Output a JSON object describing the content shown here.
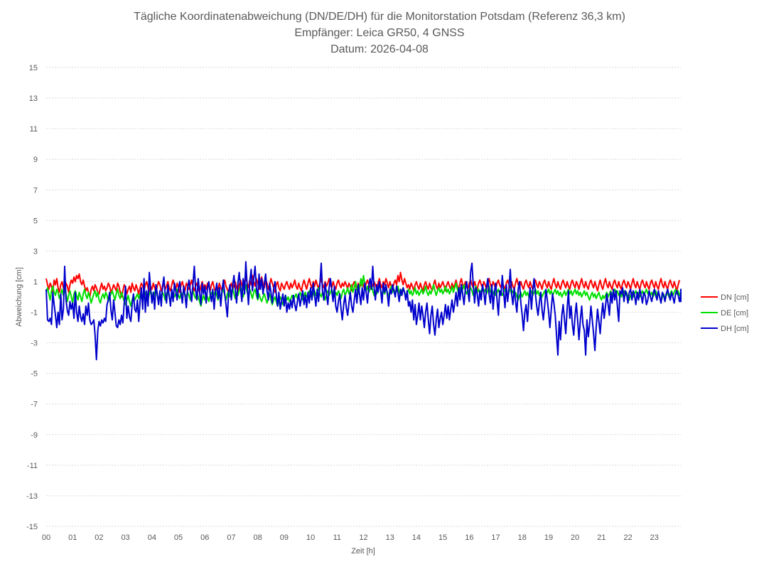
{
  "chart_data": {
    "type": "line",
    "title": [
      "Tägliche Koordinatenabweichung (DN/DE/DH) für die Monitorstation Potsdam (Referenz 36,3 km)",
      "Empfänger: Leica GR50, 4 GNSS",
      "Datum: 2026-04-08"
    ],
    "xlabel": "Zeit [h]",
    "ylabel": "Abweichung [cm]",
    "xlim": [
      0,
      24
    ],
    "ylim": [
      -15,
      15
    ],
    "x_ticks": [
      "00",
      "01",
      "02",
      "03",
      "04",
      "05",
      "06",
      "07",
      "08",
      "09",
      "10",
      "11",
      "12",
      "13",
      "14",
      "15",
      "16",
      "17",
      "18",
      "19",
      "20",
      "21",
      "22",
      "23"
    ],
    "y_ticks": [
      15,
      13,
      11,
      9,
      7,
      5,
      3,
      1,
      -1,
      -3,
      -5,
      -7,
      -9,
      -11,
      -13,
      -15
    ],
    "grid": true,
    "legend_position": "right",
    "x_step_hours": 0.05,
    "series": [
      {
        "name": "DN [cm]",
        "color": "#ff0000",
        "key": "dn"
      },
      {
        "name": "DE [cm]",
        "color": "#00e000",
        "key": "de"
      },
      {
        "name": "DH [cm]",
        "color": "#0000cc",
        "key": "dh"
      }
    ],
    "dn": [
      1.2,
      0.8,
      0.5,
      0.9,
      0.7,
      0.3,
      1.1,
      0.8,
      1.2,
      0.6,
      0.3,
      0.8,
      1.0,
      0.6,
      0.4,
      0.9,
      0.7,
      0.3,
      0.8,
      1.1,
      0.9,
      1.3,
      1.0,
      1.4,
      1.2,
      1.5,
      1.0,
      0.8,
      1.1,
      0.7,
      0.4,
      0.6,
      0.3,
      0.0,
      0.5,
      0.7,
      0.4,
      0.8,
      0.6,
      0.3,
      0.2,
      0.6,
      0.9,
      0.5,
      0.7,
      0.4,
      0.6,
      0.9,
      0.7,
      0.3,
      0.5,
      0.8,
      0.6,
      0.4,
      0.9,
      0.7,
      0.3,
      0.0,
      0.4,
      0.8,
      0.6,
      0.2,
      0.5,
      0.7,
      0.3,
      0.9,
      0.6,
      0.4,
      0.8,
      0.5,
      0.2,
      0.6,
      0.9,
      0.7,
      0.4,
      0.8,
      1.0,
      0.6,
      0.3,
      0.7,
      0.5,
      0.9,
      0.6,
      0.3,
      0.7,
      1.0,
      0.8,
      0.4,
      0.6,
      0.9,
      0.5,
      0.7,
      1.0,
      0.6,
      0.4,
      0.8,
      1.1,
      0.7,
      0.5,
      0.9,
      0.6,
      0.3,
      0.8,
      1.0,
      0.6,
      0.4,
      0.9,
      0.7,
      0.5,
      0.8,
      1.1,
      0.7,
      0.4,
      0.7,
      0.9,
      0.6,
      0.3,
      0.7,
      1.0,
      0.6,
      0.8,
      0.5,
      0.9,
      0.7,
      0.4,
      0.8,
      1.0,
      0.6,
      0.3,
      0.7,
      0.5,
      0.9,
      0.6,
      0.4,
      0.8,
      1.1,
      0.7,
      0.5,
      0.2,
      0.6,
      0.9,
      0.5,
      0.7,
      1.0,
      0.6,
      0.3,
      0.8,
      1.1,
      0.8,
      0.5,
      1.0,
      1.3,
      0.9,
      0.6,
      1.1,
      0.8,
      1.4,
      1.0,
      0.7,
      1.2,
      0.9,
      0.5,
      1.0,
      1.3,
      0.8,
      0.6,
      1.1,
      0.9,
      0.5,
      0.8,
      1.2,
      0.9,
      0.6,
      0.3,
      0.8,
      1.0,
      0.6,
      0.4,
      0.9,
      0.7,
      0.5,
      0.8,
      1.0,
      0.7,
      0.5,
      0.9,
      0.6,
      0.8,
      1.1,
      0.7,
      0.5,
      0.9,
      0.6,
      0.4,
      0.8,
      1.1,
      0.8,
      0.5,
      0.9,
      1.2,
      0.8,
      0.6,
      1.0,
      0.7,
      1.1,
      0.8,
      0.5,
      0.9,
      1.2,
      0.8,
      0.6,
      1.0,
      0.7,
      0.9,
      1.2,
      0.8,
      0.6,
      1.0,
      0.7,
      0.5,
      0.9,
      1.1,
      0.8,
      0.6,
      0.9,
      0.7,
      1.0,
      0.8,
      0.5,
      0.9,
      0.7,
      0.4,
      0.8,
      1.0,
      0.7,
      0.5,
      0.9,
      0.6,
      0.8,
      1.1,
      0.7,
      0.5,
      0.9,
      1.1,
      0.8,
      0.6,
      0.9,
      0.7,
      1.0,
      0.8,
      0.5,
      0.9,
      1.2,
      0.8,
      0.6,
      1.0,
      0.8,
      1.2,
      0.9,
      0.6,
      1.0,
      0.7,
      0.5,
      0.9,
      1.1,
      0.8,
      1.4,
      1.0,
      1.6,
      1.1,
      0.8,
      1.2,
      0.9,
      0.6,
      0.8,
      0.5,
      0.9,
      0.7,
      0.4,
      0.8,
      1.0,
      0.7,
      0.5,
      0.9,
      0.6,
      0.4,
      0.8,
      1.0,
      0.7,
      0.5,
      0.9,
      0.6,
      0.4,
      0.8,
      1.1,
      0.7,
      0.5,
      0.9,
      0.6,
      0.8,
      1.0,
      0.7,
      0.4,
      0.8,
      1.0,
      0.7,
      0.5,
      0.9,
      0.6,
      0.8,
      1.1,
      0.7,
      0.5,
      0.9,
      1.2,
      0.8,
      0.6,
      1.0,
      0.7,
      0.5,
      0.9,
      1.1,
      0.8,
      0.6,
      1.0,
      0.7,
      0.5,
      0.9,
      1.1,
      0.8,
      0.6,
      1.0,
      0.8,
      0.5,
      0.9,
      1.2,
      0.8,
      0.6,
      1.0,
      0.8,
      0.5,
      0.9,
      1.1,
      0.8,
      0.6,
      1.0,
      0.7,
      0.5,
      0.9,
      1.1,
      0.8,
      0.6,
      1.0,
      0.7,
      0.5,
      0.9,
      1.2,
      0.8,
      0.6,
      1.0,
      0.7,
      0.5,
      0.9,
      1.1,
      0.8,
      0.6,
      1.0,
      0.7,
      0.5,
      0.9,
      1.1,
      0.8,
      0.6,
      1.0,
      0.8,
      0.5,
      0.9,
      1.1,
      0.8,
      0.6,
      1.0,
      0.7,
      0.5,
      0.9,
      1.2,
      0.8,
      0.6,
      1.0,
      0.7,
      0.5,
      0.9,
      1.1,
      0.8,
      0.6,
      1.0,
      0.7,
      0.5,
      0.9,
      1.1,
      0.8,
      0.6,
      1.0,
      0.8,
      0.5,
      0.9,
      1.2,
      0.8,
      0.6,
      1.0,
      0.7,
      0.5,
      0.9,
      1.1,
      0.8,
      0.6,
      1.0,
      0.7,
      0.4,
      0.8,
      1.1,
      0.7,
      0.5,
      0.9,
      1.2,
      0.8,
      0.6,
      1.0,
      0.7,
      0.5,
      0.9,
      1.1,
      0.8,
      0.6,
      1.0,
      0.7,
      0.5,
      0.9,
      1.1,
      0.8,
      0.6,
      1.0,
      0.8,
      0.5,
      0.9,
      1.2,
      0.8,
      0.6,
      1.0,
      0.7,
      0.5,
      0.9,
      1.1,
      0.8,
      0.6,
      1.0,
      0.7,
      0.5,
      0.9,
      1.1,
      0.8,
      0.6,
      1.0,
      0.7,
      0.5,
      0.9,
      1.2,
      0.8,
      0.6,
      1.0,
      0.7,
      0.5,
      0.9,
      1.1,
      0.8,
      0.6,
      1.0,
      0.7,
      0.4,
      0.8,
      1.1
    ],
    "de": [
      0.3,
      0.6,
      0.2,
      -0.2,
      0.4,
      0.7,
      0.3,
      0.1,
      0.5,
      0.3,
      -0.1,
      0.2,
      0.5,
      0.1,
      0.4,
      0.2,
      -0.3,
      0.1,
      0.4,
      0.0,
      -0.4,
      0.2,
      0.4,
      0.1,
      -0.2,
      0.3,
      0.0,
      -0.3,
      0.2,
      0.5,
      0.1,
      -0.1,
      0.3,
      0.0,
      -0.4,
      -0.1,
      0.2,
      0.4,
      0.0,
      0.3,
      -0.2,
      -0.4,
      0.0,
      0.2,
      -0.1,
      0.3,
      0.1,
      -0.3,
      0.0,
      0.2,
      0.4,
      0.1,
      -0.2,
      0.2,
      0.5,
      0.1,
      -0.1,
      0.3,
      0.0,
      -0.3,
      -0.5,
      -0.2,
      0.1,
      -0.3,
      -0.6,
      -0.2,
      0.1,
      -0.2,
      0.0,
      0.2,
      -0.1,
      0.2,
      0.0,
      -0.3,
      0.1,
      0.3,
      0.0,
      -0.2,
      0.2,
      0.4,
      0.1,
      -0.1,
      0.3,
      0.5,
      0.1,
      -0.2,
      0.2,
      0.0,
      0.3,
      0.1,
      -0.2,
      0.2,
      0.4,
      0.0,
      -0.3,
      0.1,
      0.3,
      0.0,
      0.2,
      0.5,
      0.1,
      -0.1,
      0.3,
      0.1,
      0.4,
      0.2,
      0.0,
      0.3,
      0.1,
      -0.2,
      0.2,
      0.4,
      0.1,
      -0.1,
      0.3,
      0.0,
      -0.3,
      -0.6,
      -0.2,
      0.1,
      -0.2,
      0.2,
      0.0,
      -0.3,
      0.1,
      0.3,
      0.0,
      0.2,
      0.4,
      0.1,
      -0.2,
      0.2,
      0.0,
      0.3,
      0.5,
      0.1,
      -0.2,
      0.2,
      0.4,
      0.0,
      0.3,
      0.6,
      0.2,
      -0.1,
      0.3,
      0.1,
      0.4,
      0.7,
      0.3,
      0.0,
      0.4,
      0.8,
      0.3,
      0.1,
      0.5,
      0.2,
      -0.1,
      0.3,
      0.5,
      0.1,
      -0.2,
      0.2,
      -0.1,
      -0.3,
      0.0,
      0.2,
      -0.1,
      -0.4,
      -0.1,
      0.2,
      -0.2,
      -0.5,
      -0.2,
      0.0,
      -0.3,
      -0.6,
      -0.3,
      0.0,
      -0.2,
      -0.5,
      -0.2,
      0.1,
      -0.2,
      0.0,
      -0.3,
      -0.1,
      0.1,
      -0.2,
      0.0,
      0.2,
      -0.1,
      0.1,
      0.3,
      0.0,
      -0.2,
      0.1,
      0.3,
      0.0,
      0.2,
      0.4,
      0.1,
      -0.1,
      0.2,
      0.4,
      0.1,
      0.3,
      0.6,
      0.2,
      0.0,
      0.3,
      0.1,
      -0.2,
      0.2,
      0.4,
      0.1,
      0.3,
      0.5,
      0.2,
      0.0,
      0.3,
      0.1,
      0.4,
      0.2,
      -0.1,
      0.3,
      0.5,
      0.1,
      0.3,
      0.6,
      0.2,
      0.4,
      0.8,
      0.3,
      0.6,
      1.0,
      0.5,
      0.2,
      0.6,
      1.2,
      0.7,
      1.4,
      0.8,
      0.4,
      0.7,
      0.3,
      0.5,
      0.8,
      0.4,
      0.1,
      0.4,
      0.2,
      0.5,
      0.8,
      0.4,
      0.1,
      0.4,
      0.2,
      0.6,
      0.3,
      0.0,
      0.4,
      0.7,
      0.3,
      0.5,
      0.2,
      0.4,
      0.7,
      0.3,
      0.1,
      0.4,
      0.6,
      0.3,
      0.0,
      0.3,
      0.5,
      0.2,
      0.4,
      0.1,
      0.3,
      0.6,
      0.2,
      0.4,
      0.1,
      0.3,
      0.5,
      0.2,
      0.4,
      0.7,
      0.3,
      0.1,
      0.4,
      0.2,
      0.5,
      0.8,
      0.4,
      0.1,
      0.4,
      0.6,
      0.3,
      0.5,
      0.2,
      0.4,
      0.7,
      0.3,
      0.5,
      0.2,
      0.4,
      0.7,
      0.3,
      0.6,
      0.9,
      0.5,
      0.2,
      0.6,
      0.3,
      0.5,
      0.8,
      0.4,
      0.2,
      0.5,
      0.3,
      0.6,
      0.4,
      0.1,
      0.4,
      0.7,
      0.3,
      0.5,
      0.2,
      0.4,
      0.6,
      0.3,
      0.5,
      0.2,
      0.4,
      0.7,
      0.3,
      0.5,
      0.2,
      0.4,
      0.1,
      0.3,
      0.5,
      0.2,
      0.4,
      0.1,
      0.3,
      0.5,
      0.2,
      0.0,
      0.3,
      0.5,
      0.2,
      0.4,
      0.1,
      0.3,
      0.0,
      -0.2,
      0.1,
      0.3,
      0.0,
      0.2,
      0.4,
      0.1,
      0.3,
      0.0,
      0.2,
      0.4,
      0.1,
      0.3,
      0.5,
      0.2,
      0.4,
      0.1,
      0.3,
      0.0,
      0.2,
      0.4,
      0.1,
      0.3,
      0.5,
      0.2,
      0.4,
      0.1,
      0.3,
      0.5,
      0.2,
      0.4,
      0.1,
      0.3,
      0.0,
      0.2,
      0.4,
      0.1,
      0.3,
      0.5,
      0.2,
      0.4,
      0.1,
      0.3,
      0.5,
      0.2,
      0.4,
      0.1,
      0.3,
      0.0,
      0.2,
      0.4,
      0.1,
      0.3,
      0.0,
      -0.2,
      0.1,
      0.3,
      0.0,
      0.2,
      -0.1,
      0.1,
      0.3,
      0.0,
      -0.2,
      0.1,
      -0.1,
      0.1,
      0.3,
      0.0,
      0.2,
      0.4,
      0.1,
      0.3,
      0.5,
      0.2,
      0.4,
      0.1,
      0.3,
      0.0,
      0.2,
      0.4,
      0.1,
      0.3,
      0.0,
      -0.2,
      0.1,
      0.3,
      0.0,
      0.2,
      0.4,
      0.1,
      0.3,
      0.0,
      0.2,
      0.4,
      0.1,
      0.3,
      0.5,
      0.2,
      0.4,
      0.1,
      0.3,
      0.0,
      0.2,
      0.4,
      0.1,
      0.3,
      0.0,
      -0.3,
      0.0,
      0.2,
      -0.1,
      0.1,
      0.3,
      0.0,
      0.2,
      0.4,
      0.1,
      0.3,
      0.5,
      0.2,
      0.4,
      0.1,
      0.3
    ],
    "dh": [
      0.5,
      -1.5,
      -1.6,
      -1.4,
      -1.8,
      0.3,
      -0.5,
      -1.2,
      -2.0,
      -1.0,
      -1.8,
      0.2,
      -1.5,
      -0.8,
      2.0,
      -0.2,
      -0.9,
      -1.2,
      -0.3,
      -0.8,
      -0.4,
      -1.4,
      0.3,
      -1.0,
      -1.6,
      -0.6,
      -1.3,
      -1.6,
      -1.1,
      -1.8,
      -0.6,
      -1.2,
      -0.4,
      -1.5,
      -1.8,
      -1.7,
      -1.5,
      -2.5,
      -4.1,
      -2.2,
      -1.6,
      -1.9,
      -1.5,
      -1.7,
      -1.4,
      -1.6,
      -0.5,
      -0.2,
      0.3,
      -0.9,
      -1.5,
      -0.2,
      -1.0,
      -1.9,
      -2.0,
      -1.5,
      -1.8,
      -1.2,
      -1.7,
      -0.4,
      0.7,
      -1.4,
      -0.6,
      -1.3,
      -1.6,
      -0.5,
      0.2,
      -0.8,
      -1.0,
      -0.2,
      -1.6,
      -0.3,
      0.6,
      -0.8,
      1.2,
      -1.0,
      0.4,
      -0.6,
      1.6,
      0.5,
      -0.4,
      0.3,
      -0.8,
      0.8,
      0.2,
      -0.5,
      0.4,
      -0.6,
      0.7,
      1.3,
      0.2,
      -0.4,
      0.8,
      0.1,
      -0.6,
      0.5,
      -0.3,
      0.9,
      0.4,
      -0.2,
      0.5,
      1.0,
      0.2,
      -0.4,
      0.7,
      0.1,
      -0.7,
      0.6,
      1.1,
      0.4,
      -0.3,
      0.8,
      2.0,
      0.5,
      -0.2,
      1.2,
      0.3,
      -0.5,
      0.9,
      0.2,
      0.7,
      -0.4,
      0.6,
      1.0,
      0.2,
      -0.3,
      0.5,
      -0.8,
      0.3,
      0.9,
      -0.1,
      0.6,
      -0.6,
      0.4,
      1.1,
      0.2,
      -0.5,
      -1.3,
      0.3,
      0.8,
      -0.2,
      0.7,
      1.4,
      0.5,
      -0.4,
      0.9,
      1.6,
      0.6,
      -0.3,
      1.2,
      0.2,
      2.3,
      0.7,
      -0.5,
      1.0,
      1.8,
      0.4,
      1.2,
      2.0,
      0.6,
      -0.1,
      1.5,
      0.5,
      1.2,
      0.2,
      0.9,
      1.5,
      0.4,
      -0.2,
      0.9,
      0.3,
      -0.4,
      0.5,
      1.0,
      0.2,
      -0.6,
      0.3,
      -0.8,
      -0.3,
      0.2,
      -0.6,
      0.1,
      -1.0,
      -0.4,
      -0.8,
      -0.2,
      -0.7,
      0.1,
      -0.5,
      -0.9,
      -0.3,
      0.2,
      -0.6,
      -0.1,
      0.4,
      -0.5,
      0.1,
      -0.7,
      0.3,
      -0.4,
      0.6,
      -0.2,
      0.9,
      0.1,
      -0.6,
      0.5,
      -0.3,
      0.8,
      2.2,
      0.4,
      -0.2,
      0.9,
      0.2,
      -0.5,
      0.6,
      1.2,
      0.4,
      -0.3,
      0.7,
      -0.6,
      -1.0,
      -0.3,
      0.2,
      -0.8,
      -1.5,
      -0.5,
      0.1,
      -0.7,
      -1.2,
      -0.4,
      0.3,
      -0.6,
      -1.0,
      -0.2,
      0.5,
      -0.4,
      0.8,
      0.2,
      -0.5,
      0.6,
      -0.2,
      0.9,
      0.3,
      -0.4,
      0.7,
      1.2,
      0.5,
      2.0,
      0.6,
      -0.2,
      0.8,
      0.3,
      1.0,
      0.4,
      -0.4,
      0.9,
      0.3,
      0.8,
      0.2,
      -0.6,
      0.5,
      0.2,
      0.8,
      0.4,
      0.0,
      0.7,
      0.3,
      -0.3,
      0.5,
      0.1,
      0.6,
      0.3,
      -0.2,
      0.4,
      -0.6,
      -0.3,
      -1.0,
      -0.2,
      -1.5,
      -0.5,
      -1.8,
      -1.2,
      -0.4,
      -1.5,
      -0.6,
      -1.2,
      -2.0,
      -1.0,
      -0.4,
      -1.5,
      -2.4,
      -1.2,
      -0.6,
      -1.8,
      -2.5,
      -1.5,
      -0.8,
      -2.0,
      -1.4,
      -1.0,
      -1.8,
      -1.2,
      -0.5,
      -1.4,
      -0.6,
      -1.5,
      -0.8,
      -0.2,
      -1.0,
      -0.4,
      0.3,
      -0.6,
      0.6,
      -0.2,
      0.8,
      0.2,
      -0.5,
      0.5,
      1.0,
      0.3,
      -0.3,
      1.6,
      2.2,
      0.8,
      -0.4,
      0.6,
      0.2,
      -0.6,
      0.4,
      -0.2,
      0.8,
      0.3,
      -0.5,
      0.6,
      1.2,
      0.2,
      -0.4,
      0.8,
      -0.8,
      0.3,
      0.9,
      -0.2,
      -1.2,
      0.4,
      0.1,
      1.4,
      0.3,
      -0.7,
      0.8,
      -0.3,
      0.5,
      1.8,
      0.2,
      -0.5,
      0.6,
      -0.3,
      -1.0,
      0.5,
      1.0,
      -0.4,
      -1.2,
      -2.2,
      -1.0,
      -0.5,
      -1.6,
      -0.3,
      0.6,
      -0.8,
      0.4,
      1.2,
      0.2,
      -0.6,
      -1.2,
      -0.4,
      0.3,
      -0.8,
      -1.5,
      -0.6,
      0.5,
      -0.2,
      -1.0,
      -2.0,
      -0.8,
      0.2,
      -0.4,
      -1.2,
      -2.5,
      -3.8,
      -1.6,
      -2.8,
      -1.2,
      -0.5,
      -1.5,
      -2.4,
      -0.8,
      0.4,
      -1.4,
      -0.6,
      -1.8,
      -2.5,
      -1.2,
      -0.4,
      -1.6,
      -2.8,
      -1.5,
      -0.6,
      -1.8,
      -2.2,
      -3.8,
      -1.5,
      -2.6,
      -1.8,
      -0.6,
      -1.5,
      -2.4,
      -3.5,
      -2.0,
      -0.8,
      -1.6,
      -2.4,
      -1.2,
      -0.4,
      -1.4,
      -0.6,
      0.2,
      -0.5,
      -1.2,
      0.3,
      -0.4,
      0.5,
      -0.2,
      0.4,
      -0.6,
      -1.6,
      0.4,
      0.2,
      0.6,
      -0.3,
      0.4,
      0.2,
      -0.4,
      0.3,
      0.5,
      -0.2,
      0.4,
      0.1,
      -0.5,
      0.3,
      -0.2,
      0.5,
      0.1,
      -0.4,
      0.3,
      0.1,
      -0.5,
      -0.2,
      0.4,
      0.0,
      -0.3,
      0.2,
      0.5,
      0.1,
      -0.2,
      0.4,
      0.0,
      -0.4,
      0.3,
      0.1,
      -0.3,
      0.2,
      0.5,
      0.1,
      -0.2,
      0.3,
      0.0,
      -0.4,
      0.2,
      0.4,
      0.1,
      -0.3,
      0.2,
      0.4,
      0.1,
      -0.3,
      0.2,
      0.5,
      0.1,
      -0.2,
      0.4,
      0.0,
      -0.3,
      0.2,
      0.5,
      0.1
    ]
  }
}
